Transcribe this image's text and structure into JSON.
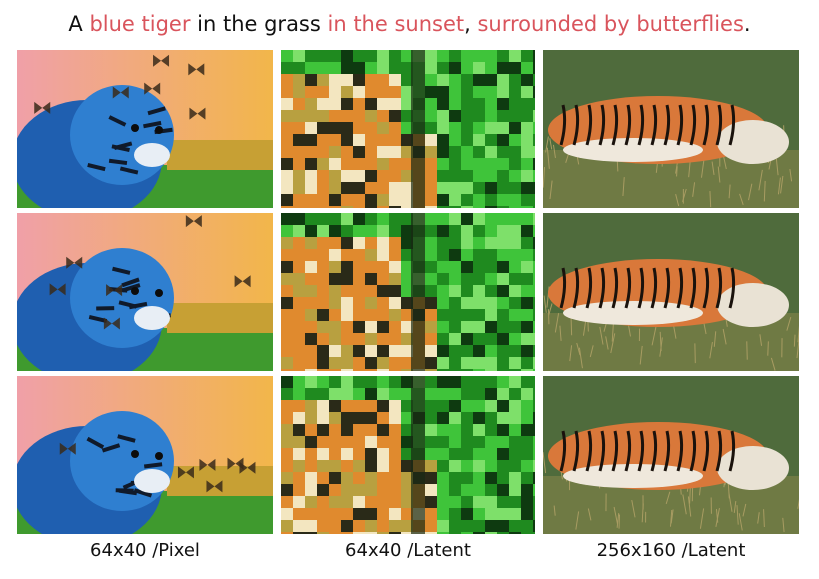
{
  "caption": {
    "segments": [
      {
        "text": "A ",
        "highlight": false
      },
      {
        "text": "blue tiger",
        "highlight": true
      },
      {
        "text": " in the grass ",
        "highlight": false
      },
      {
        "text": "in the sunset",
        "highlight": true
      },
      {
        "text": ", ",
        "highlight": false
      },
      {
        "text": "surrounded by butterflies",
        "highlight": true
      },
      {
        "text": ".",
        "highlight": false
      }
    ]
  },
  "columns": [
    {
      "label": "64x40 /Pixel",
      "style": "blue-tiger-sunset"
    },
    {
      "label": "64x40 /Latent",
      "style": "tiger-in-forest-pixelated"
    },
    {
      "label": "256x160 /Latent",
      "style": "tiger-lying-in-grass"
    }
  ],
  "rows": 3,
  "colors": {
    "highlight": "#d9545c",
    "tiger_blue": "#2f7fd0",
    "tiger_orange": "#d9783a",
    "grass": "#3f9a2e",
    "sunset_pink": "#f0a0a8",
    "sunset_orange": "#f2b64a"
  }
}
